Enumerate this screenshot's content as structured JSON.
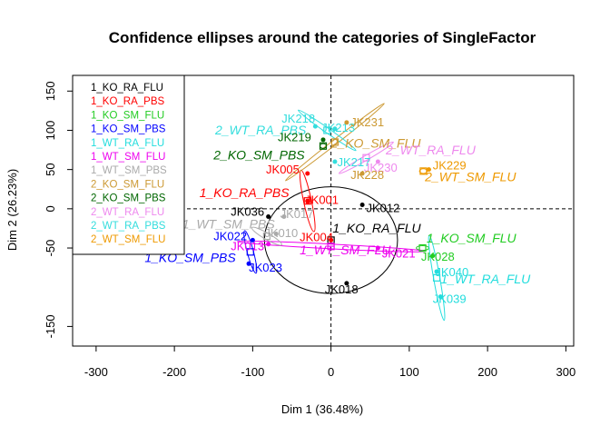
{
  "chart_data": {
    "type": "scatter",
    "title": "Confidence ellipses around the categories of SingleFactor",
    "xlabel": "Dim 1 (36.48%)",
    "ylabel": "Dim 2 (26.23%)",
    "xlim": [
      -330,
      310
    ],
    "ylim": [
      -175,
      170
    ],
    "x_ticks": [
      -300,
      -200,
      -100,
      0,
      100,
      200,
      300
    ],
    "y_ticks": [
      -150,
      -50,
      0,
      50,
      100,
      150
    ],
    "grid": false,
    "legend_position": "top-left",
    "legend": [
      {
        "label": "1_KO_RA_FLU",
        "color": "#000000"
      },
      {
        "label": "1_KO_RA_PBS",
        "color": "#ff0000"
      },
      {
        "label": "1_KO_SM_FLU",
        "color": "#22cc22"
      },
      {
        "label": "1_KO_SM_PBS",
        "color": "#0000ff"
      },
      {
        "label": "1_WT_RA_FLU",
        "color": "#22dddd"
      },
      {
        "label": "1_WT_SM_FLU",
        "color": "#ee00ee"
      },
      {
        "label": "1_WT_SM_PBS",
        "color": "#aaaaaa"
      },
      {
        "label": "2_KO_SM_FLU",
        "color": "#cc9933"
      },
      {
        "label": "2_KO_SM_PBS",
        "color": "#006600"
      },
      {
        "label": "2_WT_RA_FLU",
        "color": "#ee88ee"
      },
      {
        "label": "2_WT_RA_PBS",
        "color": "#33dddd"
      },
      {
        "label": "2_WT_SM_FLU",
        "color": "#ee9900"
      }
    ],
    "categories": [
      {
        "label": "1_KO_RA_FLU",
        "color": "#000000",
        "x": 0,
        "y": -40,
        "lx": 2,
        "ly": -30
      },
      {
        "label": "1_KO_RA_PBS",
        "color": "#ff0000",
        "x": -30,
        "y": 10,
        "lx": -168,
        "ly": 15
      },
      {
        "label": "1_KO_SM_FLU",
        "color": "#22cc22",
        "x": 117,
        "y": -50,
        "lx": 122,
        "ly": -43
      },
      {
        "label": "1_KO_SM_PBS",
        "color": "#0000ff",
        "x": -103,
        "y": -55,
        "lx": -238,
        "ly": -68
      },
      {
        "label": "1_WT_RA_FLU",
        "color": "#22dddd",
        "x": 135,
        "y": -88,
        "lx": 140,
        "ly": -95
      },
      {
        "label": "1_WT_SM_FLU",
        "color": "#ee00ee",
        "x": 0,
        "y": -48,
        "lx": -40,
        "ly": -58
      },
      {
        "label": "1_WT_SM_PBS",
        "color": "#aaaaaa",
        "x": -82,
        "y": -35,
        "lx": -190,
        "ly": -25
      },
      {
        "label": "2_KO_SM_FLU",
        "color": "#cc9933",
        "x": 5,
        "y": 85,
        "lx": 0,
        "ly": 78
      },
      {
        "label": "2_KO_SM_PBS",
        "color": "#006600",
        "x": -10,
        "y": 80,
        "lx": -150,
        "ly": 63
      },
      {
        "label": "2_WT_RA_FLU",
        "color": "#ee88ee",
        "x": 45,
        "y": 65,
        "lx": 70,
        "ly": 69
      },
      {
        "label": "2_WT_RA_PBS",
        "color": "#33dddd",
        "x": -5,
        "y": 100,
        "lx": -148,
        "ly": 95
      },
      {
        "label": "2_WT_SM_FLU",
        "color": "#ee9900",
        "x": 118,
        "y": 48,
        "lx": 120,
        "ly": 35
      }
    ],
    "individuals": [
      {
        "label": "JK218",
        "color": "#33dddd",
        "x": -20,
        "y": 105,
        "lx": -63,
        "ly": 110
      },
      {
        "label": "JK213",
        "color": "#33dddd",
        "x": 5,
        "y": 102,
        "lx": -12,
        "ly": 98
      },
      {
        "label": "JK231",
        "color": "#cc9933",
        "x": 20,
        "y": 110,
        "lx": 25,
        "ly": 105
      },
      {
        "label": "JK219",
        "color": "#006600",
        "x": -10,
        "y": 88,
        "lx": -68,
        "ly": 86
      },
      {
        "label": "JK217",
        "color": "#33dddd",
        "x": 5,
        "y": 60,
        "lx": 8,
        "ly": 54
      },
      {
        "label": "JK230",
        "color": "#ee88ee",
        "x": 60,
        "y": 60,
        "lx": 42,
        "ly": 47
      },
      {
        "label": "JK229",
        "color": "#ee9900",
        "x": 125,
        "y": 50,
        "lx": 130,
        "ly": 50
      },
      {
        "label": "JK228",
        "color": "#cc9933",
        "x": 40,
        "y": 45,
        "lx": 25,
        "ly": 38
      },
      {
        "label": "JK005",
        "color": "#ff0000",
        "x": -30,
        "y": 45,
        "lx": -83,
        "ly": 45
      },
      {
        "label": "JK001",
        "color": "#ff0000",
        "x": -30,
        "y": 10,
        "lx": -33,
        "ly": 6
      },
      {
        "label": "JK012",
        "color": "#000000",
        "x": 40,
        "y": 5,
        "lx": 45,
        "ly": -4
      },
      {
        "label": "JK036",
        "color": "#000000",
        "x": -80,
        "y": -10,
        "lx": -128,
        "ly": -9
      },
      {
        "label": "JK017",
        "color": "#aaaaaa",
        "x": -60,
        "y": -10,
        "lx": -65,
        "ly": -12
      },
      {
        "label": "JK004",
        "color": "#ff0000",
        "x": 0,
        "y": -40,
        "lx": -40,
        "ly": -41
      },
      {
        "label": "JK021",
        "color": "#ee00ee",
        "x": 60,
        "y": -50,
        "lx": 65,
        "ly": -62
      },
      {
        "label": "JK022",
        "color": "#0000ff",
        "x": -100,
        "y": -40,
        "lx": -150,
        "ly": -40
      },
      {
        "label": "JK013",
        "color": "#ee00ee",
        "x": -80,
        "y": -45,
        "lx": -128,
        "ly": -53
      },
      {
        "label": "JK010",
        "color": "#aaaaaa",
        "x": -70,
        "y": -32,
        "lx": -85,
        "ly": -36
      },
      {
        "label": "JK023",
        "color": "#0000ff",
        "x": -105,
        "y": -70,
        "lx": -105,
        "ly": -80
      },
      {
        "label": "JK018",
        "color": "#000000",
        "x": 20,
        "y": -95,
        "lx": -8,
        "ly": -108
      },
      {
        "label": "JK028",
        "color": "#22cc22",
        "x": 130,
        "y": -60,
        "lx": 115,
        "ly": -66
      },
      {
        "label": "JK040",
        "color": "#22dddd",
        "x": 135,
        "y": -80,
        "lx": 133,
        "ly": -86
      },
      {
        "label": "JK039",
        "color": "#22dddd",
        "x": 140,
        "y": -112,
        "lx": 130,
        "ly": -120
      }
    ]
  }
}
